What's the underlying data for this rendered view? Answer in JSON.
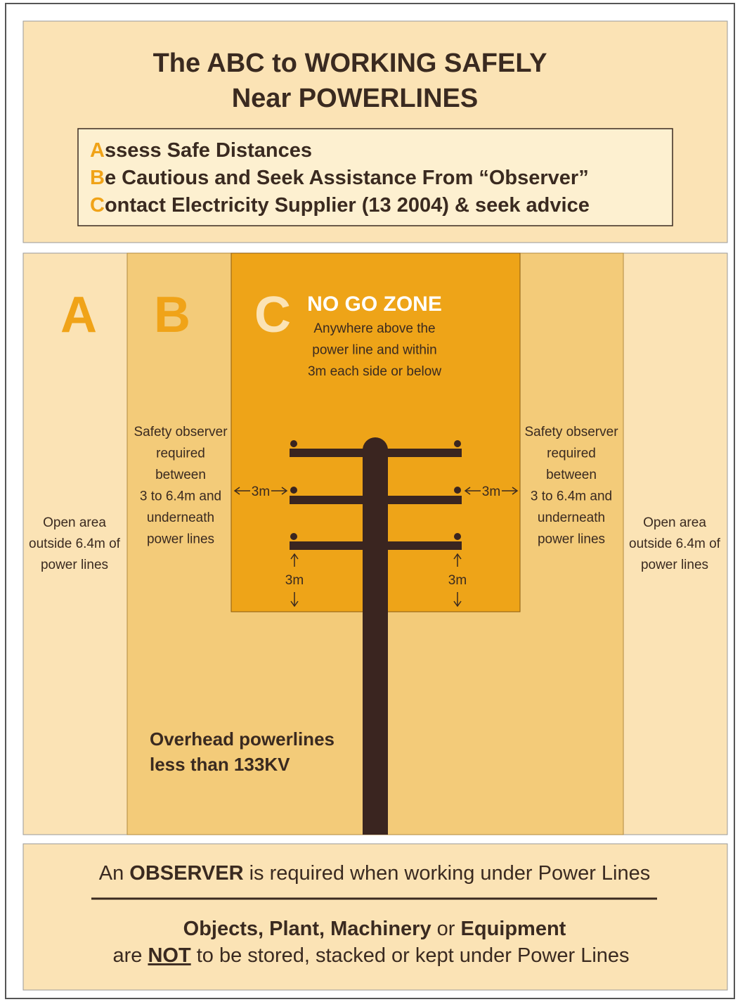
{
  "header": {
    "title_lines": [
      "The ABC to WORKING SAFELY",
      "Near POWERLINES"
    ],
    "steps": [
      {
        "letter": "A",
        "text": "ssess Safe Distances"
      },
      {
        "letter": "B",
        "text": "e Cautious and Seek Assistance From “Observer”"
      },
      {
        "letter": "C",
        "text": "ontact Electricity Supplier (13 2004) & seek advice"
      }
    ]
  },
  "zones": {
    "left_open": {
      "letter": "A",
      "description": [
        "Open area",
        "outside 6.4m of",
        "power lines"
      ]
    },
    "left_observer": {
      "letter": "B",
      "description": [
        "Safety observer",
        "required",
        "between",
        "3 to 6.4m and",
        "underneath",
        "power lines"
      ]
    },
    "no_go": {
      "letter": "C",
      "title": "NO GO ZONE",
      "description": [
        "Anywhere above the",
        "power line and within",
        "3m each side or below"
      ]
    },
    "right_observer": {
      "description": [
        "Safety observer",
        "required",
        "between",
        "3 to 6.4m and",
        "underneath",
        "power lines"
      ]
    },
    "right_open": {
      "description": [
        "Open area",
        "outside 6.4m of",
        "power lines"
      ]
    }
  },
  "clearances": [
    "3m",
    "3m",
    "3m",
    "3m"
  ],
  "pole_label": [
    "Overhead powerlines",
    "less than 133KV"
  ],
  "footer": {
    "line1": [
      "An",
      "OBSERVER",
      "is required when working under Power Lines"
    ],
    "line2": [
      "Objects, Plant, Machinery",
      "or",
      "Equipment"
    ],
    "line3": [
      "are",
      "NOT",
      "to be stored, stacked or kept under Power Lines"
    ]
  }
}
